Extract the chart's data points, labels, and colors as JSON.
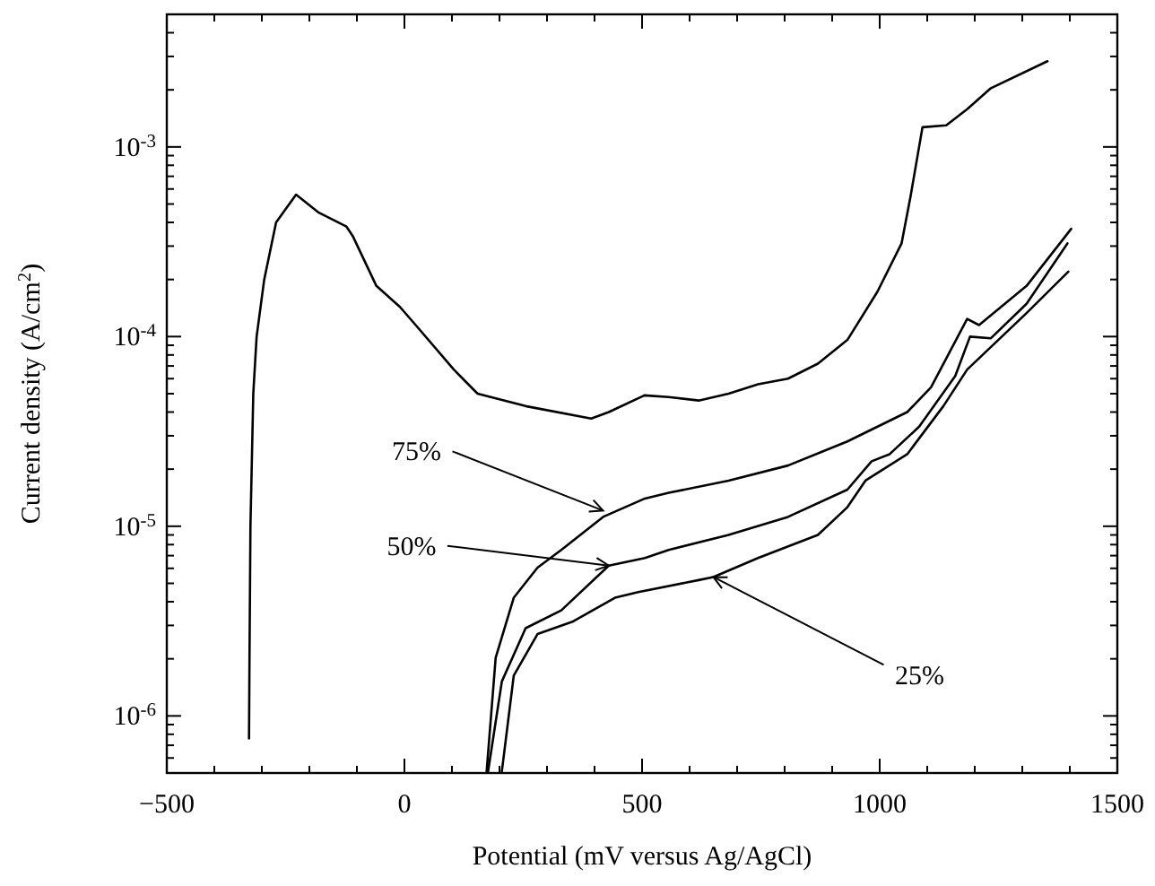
{
  "chart_data": {
    "type": "line",
    "xlabel": "Potential (mV versus Ag/AgCl)",
    "ylabel": "Current density (A/cm$^{2}$)",
    "log": true,
    "xlim": [
      -500,
      1500
    ],
    "ylim": [
      5e-07,
      0.005
    ],
    "xticks": [
      -500,
      {
        "value": -400,
        "label": null
      },
      {
        "value": -300,
        "label": null
      },
      {
        "value": -200,
        "label": null
      },
      {
        "value": -100,
        "label": null
      },
      0,
      {
        "value": 100,
        "label": null
      },
      {
        "value": 200,
        "label": null
      },
      {
        "value": 300,
        "label": null
      },
      {
        "value": 400,
        "label": null
      },
      500,
      {
        "value": 600,
        "label": null
      },
      {
        "value": 700,
        "label": null
      },
      {
        "value": 800,
        "label": null
      },
      {
        "value": 900,
        "label": null
      },
      1000,
      {
        "value": 1100,
        "label": null
      },
      {
        "value": 1200,
        "label": null
      },
      {
        "value": 1300,
        "label": null
      },
      {
        "value": 1400,
        "label": null
      },
      1500
    ],
    "yticks": [
      {
        "value": 6e-07,
        "label": null
      },
      {
        "value": 7e-07,
        "label": null
      },
      {
        "value": 8e-07,
        "label": null
      },
      {
        "value": 9e-07,
        "label": null
      },
      {
        "value": 1e-06,
        "label": "10$^{-6}$"
      },
      {
        "value": 2e-06,
        "label": null
      },
      {
        "value": 3e-06,
        "label": null
      },
      {
        "value": 4e-06,
        "label": null
      },
      {
        "value": 5e-06,
        "label": null
      },
      {
        "value": 6e-06,
        "label": null
      },
      {
        "value": 7e-06,
        "label": null
      },
      {
        "value": 8e-06,
        "label": null
      },
      {
        "value": 9e-06,
        "label": null
      },
      {
        "value": 1e-05,
        "label": "10$^{-5}$"
      },
      {
        "value": 2e-05,
        "label": null
      },
      {
        "value": 3e-05,
        "label": null
      },
      {
        "value": 4e-05,
        "label": null
      },
      {
        "value": 5e-05,
        "label": null
      },
      {
        "value": 6e-05,
        "label": null
      },
      {
        "value": 7e-05,
        "label": null
      },
      {
        "value": 8e-05,
        "label": null
      },
      {
        "value": 9e-05,
        "label": null
      },
      {
        "value": 0.0001,
        "label": "10$^{-4}$"
      },
      {
        "value": 0.0002,
        "label": null
      },
      {
        "value": 0.0003,
        "label": null
      },
      {
        "value": 0.0004,
        "label": null
      },
      {
        "value": 0.0005,
        "label": null
      },
      {
        "value": 0.0006,
        "label": null
      },
      {
        "value": 0.0007,
        "label": null
      },
      {
        "value": 0.0008,
        "label": null
      },
      {
        "value": 0.0009,
        "label": null
      },
      {
        "value": 0.001,
        "label": "10$^{-3}$"
      },
      {
        "value": 0.002,
        "label": null
      },
      {
        "value": 0.003,
        "label": null
      },
      {
        "value": 0.004,
        "label": null
      }
    ],
    "series": [
      {
        "color": "#000000",
        "x": [
          -327,
          -326,
          -324,
          -318,
          -311,
          -295,
          -270,
          -228,
          -180,
          -122,
          -109,
          -59,
          -9,
          29,
          104,
          154,
          255,
          393,
          430,
          505,
          556,
          619,
          682,
          744,
          807,
          870,
          932,
          995,
          1046,
          1065,
          1090,
          1140,
          1184,
          1234,
          1353
        ],
        "values": [
          7.6e-07,
          2e-06,
          1e-05,
          5e-05,
          0.0001,
          0.0002,
          0.0004,
          0.00056,
          0.00045,
          0.00038,
          0.00034,
          0.000185,
          0.000143,
          0.000111,
          6.7e-05,
          5e-05,
          4.3e-05,
          3.7e-05,
          4e-05,
          4.9e-05,
          4.8e-05,
          4.6e-05,
          5e-05,
          5.6e-05,
          6e-05,
          7.2e-05,
          9.6e-05,
          0.000172,
          0.00031,
          0.00055,
          0.00127,
          0.0013,
          0.00158,
          0.00204,
          0.00283
        ]
      },
      {
        "color": "#000000",
        "x": [
          173,
          192,
          230,
          280,
          330,
          418,
          506,
          556,
          682,
          807,
          932,
          1058,
          1108,
          1184,
          1209,
          1309,
          1403
        ],
        "values": [
          5.1e-07,
          2.03e-06,
          4.2e-06,
          6.05e-06,
          7.5e-06,
          1.12e-05,
          1.4e-05,
          1.5e-05,
          1.74e-05,
          2.09e-05,
          2.8e-05,
          4e-05,
          5.4e-05,
          0.000124,
          0.000115,
          0.000185,
          0.00037
        ]
      },
      {
        "color": "#000000",
        "x": [
          176,
          205,
          255,
          330,
          430,
          506,
          556,
          682,
          807,
          932,
          983,
          1021,
          1083,
          1159,
          1190,
          1234,
          1309,
          1395
        ],
        "values": [
          5.1e-07,
          1.52e-06,
          2.9e-06,
          3.6e-06,
          6.2e-06,
          6.8e-06,
          7.5e-06,
          9e-06,
          1.12e-05,
          1.56e-05,
          2.2e-05,
          2.4e-05,
          3.35e-05,
          6.2e-05,
          0.0001,
          9.8e-05,
          0.000149,
          0.00031
        ]
      },
      {
        "color": "#000000",
        "x": [
          205,
          230,
          280,
          355,
          443,
          492,
          619,
          650,
          744,
          870,
          932,
          970,
          1058,
          1134,
          1184,
          1309,
          1397
        ],
        "values": [
          5.1e-07,
          1.63e-06,
          2.7e-06,
          3.15e-06,
          4.2e-06,
          4.5e-06,
          5.2e-06,
          5.4e-06,
          6.8e-06,
          9e-06,
          1.26e-05,
          1.74e-05,
          2.4e-05,
          4.3e-05,
          6.7e-05,
          0.000133,
          0.00022
        ]
      }
    ],
    "annotations": [
      {
        "text": "75%",
        "x": 418,
        "y": 1.21e-05
      },
      {
        "text": "50%",
        "x": 430,
        "y": 6.2e-06
      },
      {
        "text": "25%",
        "x": 650,
        "y": 5.4e-06
      }
    ]
  }
}
